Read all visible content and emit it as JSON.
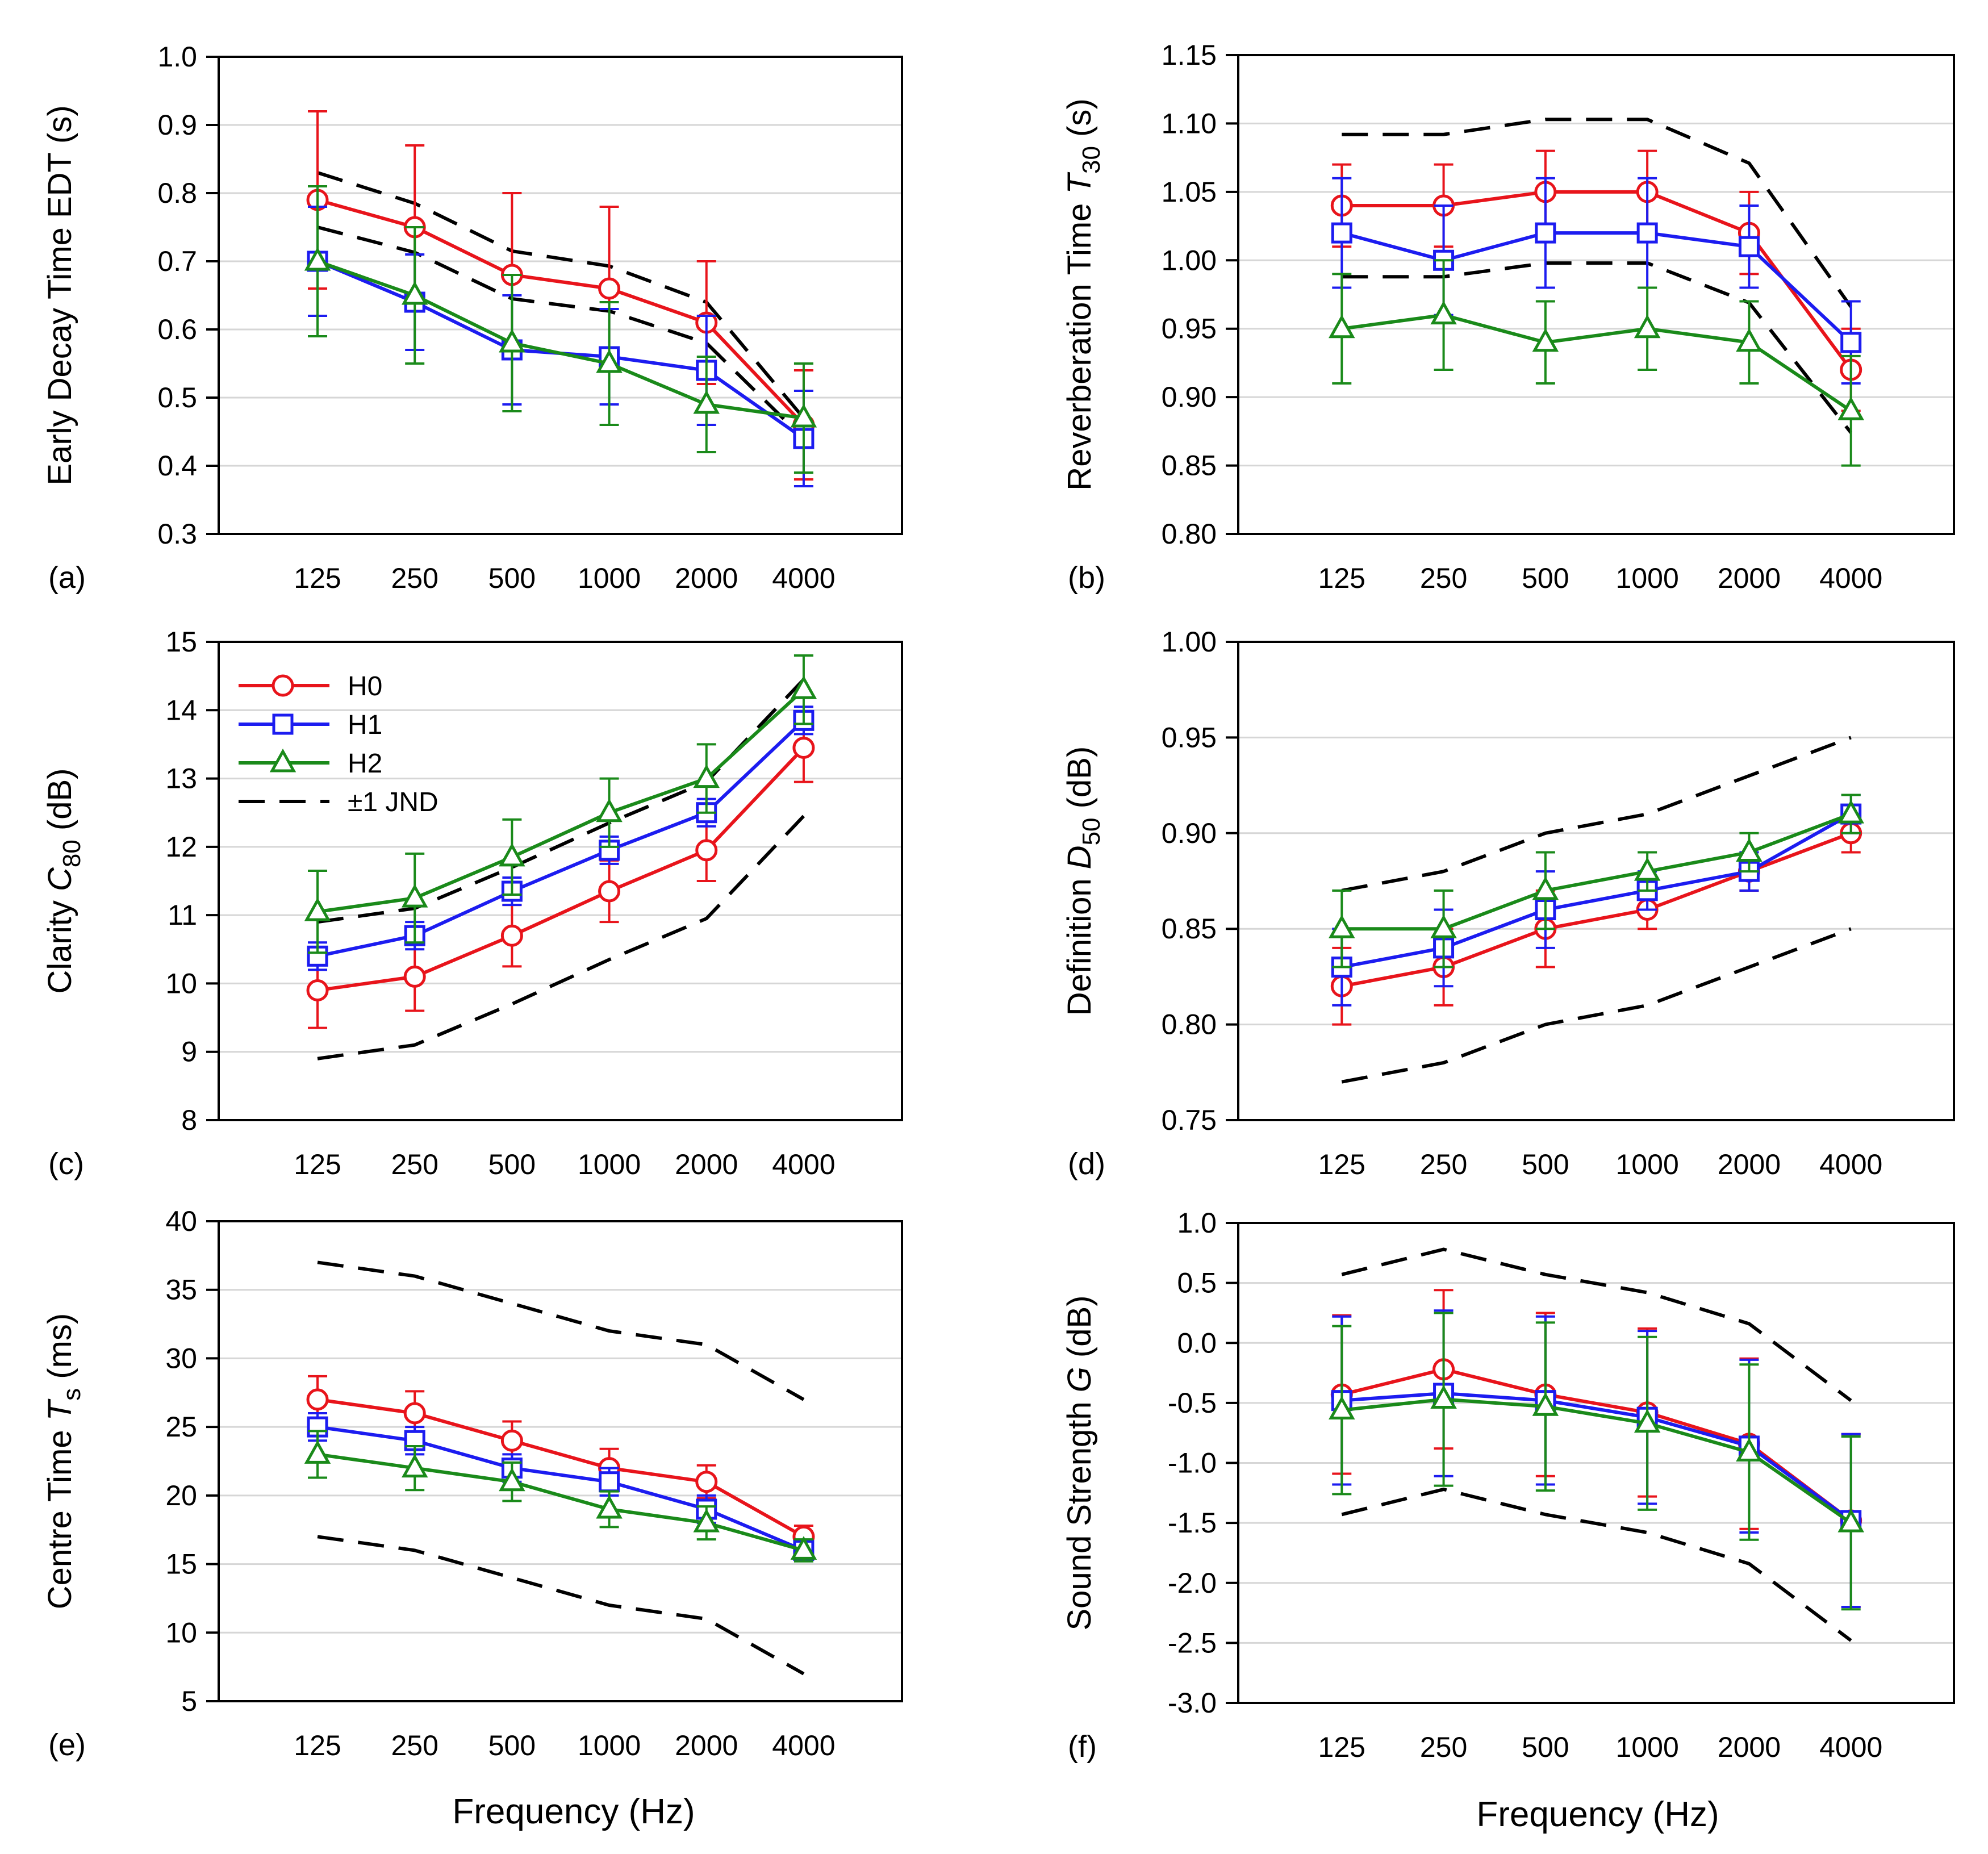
{
  "figure": {
    "x_axis_title": "Frequency (Hz)"
  },
  "colors": {
    "H0": "#e8141b",
    "H1": "#1c1cf0",
    "H2": "#1a8a1a",
    "JND": "#000000"
  },
  "legend": [
    {
      "key": "H0",
      "label": "H0",
      "marker": "circle"
    },
    {
      "key": "H1",
      "label": "H1",
      "marker": "square"
    },
    {
      "key": "H2",
      "label": "H2",
      "marker": "triangle"
    },
    {
      "key": "JND",
      "label": "±1 JND",
      "marker": "dash"
    }
  ],
  "chart_data": [
    {
      "id": "a",
      "type": "line",
      "panel_label": "(a)",
      "ylabel": {
        "pre": "Early Decay Time EDT (s)",
        "var": "",
        "sub": "",
        "post": ""
      },
      "categories": [
        "125",
        "250",
        "500",
        "1000",
        "2000",
        "4000"
      ],
      "yticks": [
        "0.3",
        "0.4",
        "0.5",
        "0.6",
        "0.7",
        "0.8",
        "0.9",
        "1.0"
      ],
      "ylim": [
        0.3,
        1.0
      ],
      "grid": true,
      "series": [
        {
          "name": "H0",
          "values": [
            0.79,
            0.75,
            0.68,
            0.66,
            0.61,
            0.46
          ],
          "err_low": [
            0.66,
            0.63,
            0.56,
            0.54,
            0.52,
            0.38
          ],
          "err_high": [
            0.92,
            0.87,
            0.8,
            0.78,
            0.7,
            0.54
          ]
        },
        {
          "name": "H1",
          "values": [
            0.7,
            0.64,
            0.57,
            0.56,
            0.54,
            0.44
          ],
          "err_low": [
            0.62,
            0.57,
            0.49,
            0.49,
            0.46,
            0.37
          ],
          "err_high": [
            0.78,
            0.71,
            0.65,
            0.63,
            0.62,
            0.51
          ]
        },
        {
          "name": "H2",
          "values": [
            0.7,
            0.65,
            0.58,
            0.55,
            0.49,
            0.47
          ],
          "err_low": [
            0.59,
            0.55,
            0.48,
            0.46,
            0.42,
            0.39
          ],
          "err_high": [
            0.81,
            0.75,
            0.68,
            0.64,
            0.56,
            0.55
          ]
        }
      ],
      "jnd": {
        "upper": [
          0.83,
          0.785,
          0.715,
          0.693,
          0.64,
          0.47
        ],
        "lower": [
          0.75,
          0.713,
          0.645,
          0.627,
          0.58,
          0.44
        ]
      }
    },
    {
      "id": "b",
      "type": "line",
      "panel_label": "(b)",
      "ylabel": {
        "pre": "Reverberation Time ",
        "var": "T",
        "sub": "30",
        "post": " (s)"
      },
      "categories": [
        "125",
        "250",
        "500",
        "1000",
        "2000",
        "4000"
      ],
      "yticks": [
        "0.80",
        "0.85",
        "0.90",
        "0.95",
        "1.00",
        "1.05",
        "1.10",
        "1.15"
      ],
      "ylim": [
        0.8,
        1.15
      ],
      "grid": true,
      "series": [
        {
          "name": "H0",
          "values": [
            1.04,
            1.04,
            1.05,
            1.05,
            1.02,
            0.92
          ],
          "err_low": [
            1.01,
            1.01,
            1.02,
            1.02,
            0.99,
            0.89
          ],
          "err_high": [
            1.07,
            1.07,
            1.08,
            1.08,
            1.05,
            0.95
          ]
        },
        {
          "name": "H1",
          "values": [
            1.02,
            1.0,
            1.02,
            1.02,
            1.01,
            0.94
          ],
          "err_low": [
            0.98,
            0.96,
            0.98,
            0.98,
            0.98,
            0.91
          ],
          "err_high": [
            1.06,
            1.04,
            1.06,
            1.06,
            1.04,
            0.97
          ]
        },
        {
          "name": "H2",
          "values": [
            0.95,
            0.96,
            0.94,
            0.95,
            0.94,
            0.89
          ],
          "err_low": [
            0.91,
            0.92,
            0.91,
            0.92,
            0.91,
            0.85
          ],
          "err_high": [
            0.99,
            1.0,
            0.97,
            0.98,
            0.97,
            0.93
          ]
        }
      ],
      "jnd": {
        "upper": [
          1.092,
          1.092,
          1.103,
          1.103,
          1.071,
          0.966
        ],
        "lower": [
          0.988,
          0.988,
          0.998,
          0.998,
          0.969,
          0.874
        ]
      }
    },
    {
      "id": "c",
      "type": "line",
      "panel_label": "(c)",
      "ylabel": {
        "pre": "Clarity ",
        "var": "C",
        "sub": "80",
        "post": " (dB)"
      },
      "categories": [
        "125",
        "250",
        "500",
        "1000",
        "2000",
        "4000"
      ],
      "yticks": [
        "8",
        "9",
        "10",
        "11",
        "12",
        "13",
        "14",
        "15"
      ],
      "ylim": [
        8,
        15
      ],
      "grid": true,
      "series": [
        {
          "name": "H0",
          "values": [
            9.9,
            10.1,
            10.7,
            11.35,
            11.95,
            13.45
          ],
          "err_low": [
            9.35,
            9.6,
            10.25,
            10.9,
            11.5,
            12.95
          ],
          "err_high": [
            10.45,
            10.6,
            11.15,
            11.8,
            12.4,
            13.95
          ]
        },
        {
          "name": "H1",
          "values": [
            10.4,
            10.7,
            11.35,
            11.95,
            12.5,
            13.85
          ],
          "err_low": [
            10.2,
            10.5,
            11.15,
            11.75,
            12.3,
            13.65
          ],
          "err_high": [
            10.6,
            10.9,
            11.55,
            12.15,
            12.7,
            14.05
          ]
        },
        {
          "name": "H2",
          "values": [
            11.05,
            11.25,
            11.85,
            12.5,
            13.0,
            14.3
          ],
          "err_low": [
            10.45,
            10.6,
            11.3,
            12.0,
            12.5,
            13.8
          ],
          "err_high": [
            11.65,
            11.9,
            12.4,
            13.0,
            13.5,
            14.8
          ]
        }
      ],
      "jnd": {
        "upper": [
          10.9,
          11.1,
          11.7,
          12.35,
          12.95,
          14.45
        ],
        "lower": [
          8.9,
          9.1,
          9.7,
          10.35,
          10.95,
          12.45
        ]
      }
    },
    {
      "id": "d",
      "type": "line",
      "panel_label": "(d)",
      "ylabel": {
        "pre": "Definition ",
        "var": "D",
        "sub": "50",
        "post": " (dB)"
      },
      "categories": [
        "125",
        "250",
        "500",
        "1000",
        "2000",
        "4000"
      ],
      "yticks": [
        "0.75",
        "0.80",
        "0.85",
        "0.90",
        "0.95",
        "1.00"
      ],
      "ylim": [
        0.75,
        1.0
      ],
      "grid": true,
      "series": [
        {
          "name": "H0",
          "values": [
            0.82,
            0.83,
            0.85,
            0.86,
            0.88,
            0.9
          ],
          "err_low": [
            0.8,
            0.81,
            0.83,
            0.85,
            0.87,
            0.89
          ],
          "err_high": [
            0.84,
            0.85,
            0.87,
            0.87,
            0.89,
            0.91
          ]
        },
        {
          "name": "H1",
          "values": [
            0.83,
            0.84,
            0.86,
            0.87,
            0.88,
            0.91
          ],
          "err_low": [
            0.81,
            0.82,
            0.84,
            0.86,
            0.87,
            0.9
          ],
          "err_high": [
            0.85,
            0.86,
            0.88,
            0.88,
            0.89,
            0.92
          ]
        },
        {
          "name": "H2",
          "values": [
            0.85,
            0.85,
            0.87,
            0.88,
            0.89,
            0.91
          ],
          "err_low": [
            0.83,
            0.83,
            0.85,
            0.87,
            0.88,
            0.9
          ],
          "err_high": [
            0.87,
            0.87,
            0.89,
            0.89,
            0.9,
            0.92
          ]
        }
      ],
      "jnd": {
        "upper": [
          0.87,
          0.88,
          0.9,
          0.91,
          0.93,
          0.95
        ],
        "lower": [
          0.77,
          0.78,
          0.8,
          0.81,
          0.83,
          0.85
        ]
      }
    },
    {
      "id": "e",
      "type": "line",
      "panel_label": "(e)",
      "ylabel": {
        "pre": "Centre Time ",
        "var": "T",
        "sub": "s",
        "post": " (ms)"
      },
      "categories": [
        "125",
        "250",
        "500",
        "1000",
        "2000",
        "4000"
      ],
      "yticks": [
        "5",
        "10",
        "15",
        "20",
        "25",
        "30",
        "35",
        "40"
      ],
      "ylim": [
        5,
        40
      ],
      "grid": true,
      "series": [
        {
          "name": "H0",
          "values": [
            27,
            26,
            24,
            22,
            21,
            17
          ],
          "err_low": [
            25.3,
            24.4,
            22.4,
            20.6,
            19.8,
            16.2
          ],
          "err_high": [
            28.7,
            27.6,
            25.4,
            23.4,
            22.2,
            17.8
          ]
        },
        {
          "name": "H1",
          "values": [
            25,
            24,
            22,
            21,
            19,
            16
          ],
          "err_low": [
            24.0,
            23.0,
            21.0,
            20.0,
            18.0,
            15.3
          ],
          "err_high": [
            26.0,
            25.0,
            23.0,
            22.0,
            20.0,
            16.7
          ]
        },
        {
          "name": "H2",
          "values": [
            23,
            22,
            21,
            19,
            18,
            16
          ],
          "err_low": [
            21.3,
            20.4,
            19.6,
            17.7,
            16.8,
            15.2
          ],
          "err_high": [
            24.7,
            23.6,
            22.4,
            20.3,
            19.2,
            16.8
          ]
        }
      ],
      "jnd": {
        "upper": [
          37,
          36,
          34,
          32,
          31,
          27
        ],
        "lower": [
          17,
          16,
          14,
          12,
          11,
          7
        ]
      }
    },
    {
      "id": "f",
      "type": "line",
      "panel_label": "(f)",
      "ylabel": {
        "pre": "Sound Strength ",
        "var": "G",
        "sub": "",
        "post": " (dB)"
      },
      "categories": [
        "125",
        "250",
        "500",
        "1000",
        "2000",
        "4000"
      ],
      "yticks": [
        "-3.0",
        "-2.5",
        "-2.0",
        "-1.5",
        "-1.0",
        "-0.5",
        "0.0",
        "0.5",
        "1.0"
      ],
      "ylim": [
        -3.0,
        1.0
      ],
      "grid": true,
      "series": [
        {
          "name": "H0",
          "values": [
            -0.43,
            -0.22,
            -0.43,
            -0.58,
            -0.84,
            -1.48
          ],
          "err_low": [
            -1.09,
            -0.88,
            -1.11,
            -1.28,
            -1.55,
            -2.2
          ],
          "err_high": [
            0.23,
            0.44,
            0.25,
            0.12,
            -0.13,
            -0.76
          ]
        },
        {
          "name": "H1",
          "values": [
            -0.48,
            -0.42,
            -0.48,
            -0.62,
            -0.86,
            -1.48
          ],
          "err_low": [
            -1.18,
            -1.11,
            -1.18,
            -1.34,
            -1.58,
            -2.2
          ],
          "err_high": [
            0.22,
            0.27,
            0.22,
            0.1,
            -0.14,
            -0.76
          ]
        },
        {
          "name": "H2",
          "values": [
            -0.56,
            -0.47,
            -0.53,
            -0.67,
            -0.91,
            -1.5
          ],
          "err_low": [
            -1.26,
            -1.19,
            -1.23,
            -1.39,
            -1.64,
            -2.22
          ],
          "err_high": [
            0.14,
            0.25,
            0.17,
            0.05,
            -0.18,
            -0.78
          ]
        }
      ],
      "jnd": {
        "upper": [
          0.57,
          0.78,
          0.57,
          0.42,
          0.16,
          -0.48
        ],
        "lower": [
          -1.43,
          -1.22,
          -1.43,
          -1.58,
          -1.84,
          -2.48
        ]
      }
    }
  ]
}
